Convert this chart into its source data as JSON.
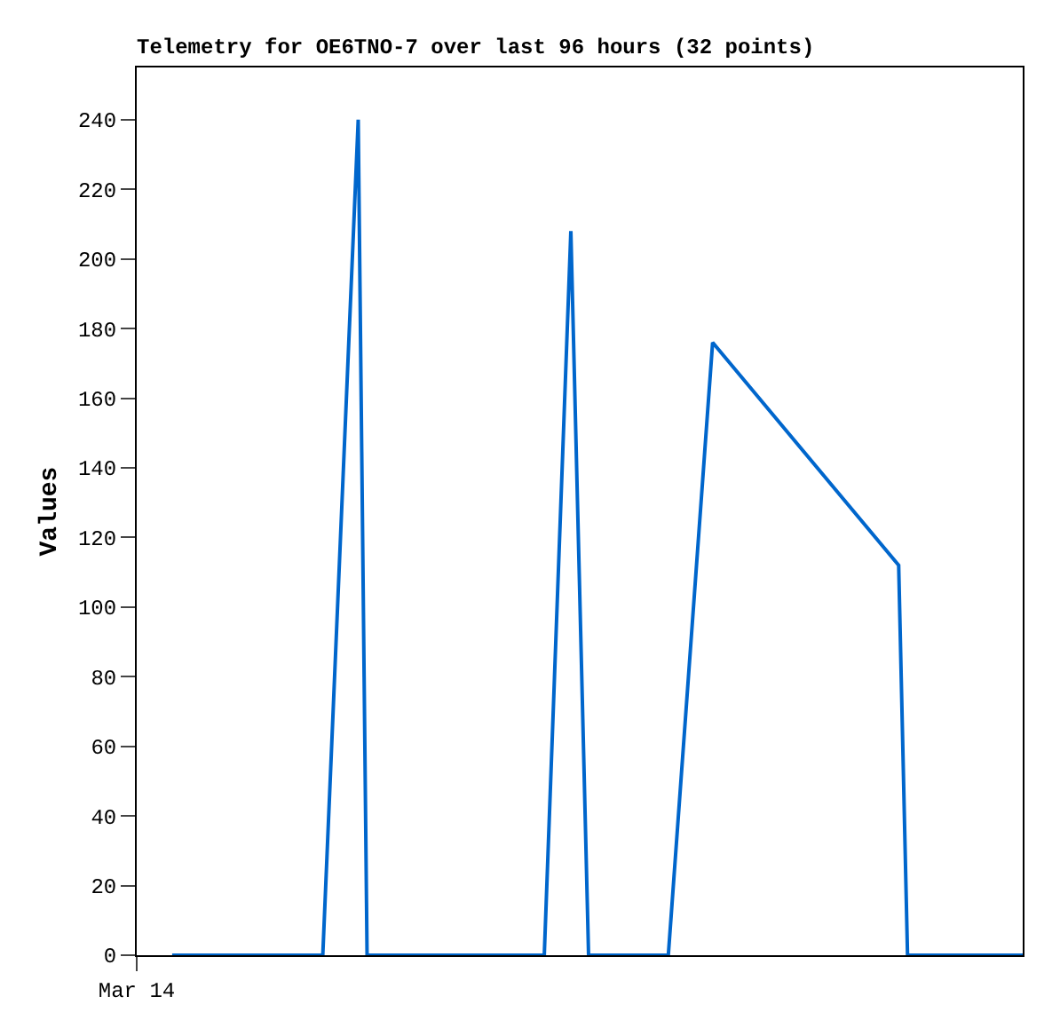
{
  "chart_data": {
    "type": "line",
    "title": "Telemetry for OE6TNO-7 over last 96 hours (32 points)",
    "ylabel": "Values",
    "categories": [
      "Mar 14",
      null,
      null,
      null,
      null,
      null,
      null,
      null,
      null,
      null,
      null,
      null,
      null,
      null,
      null,
      null,
      null,
      null,
      null,
      null,
      null,
      null,
      null,
      null,
      null,
      null,
      null,
      null,
      null,
      null,
      null,
      null,
      null,
      null,
      null,
      null,
      null,
      null,
      null,
      null,
      null,
      null,
      null,
      null,
      null,
      null,
      null,
      null,
      null,
      null,
      null,
      null,
      null,
      null,
      null,
      null,
      null,
      null,
      null,
      null,
      null,
      null,
      null,
      null,
      null,
      null,
      null,
      null,
      null,
      null,
      null,
      null,
      null,
      null,
      null,
      null,
      null,
      null,
      null,
      null,
      null,
      null,
      null,
      null,
      null,
      null,
      null,
      null,
      null,
      null,
      null,
      null,
      null,
      null,
      null,
      null,
      null,
      null,
      null,
      null,
      null
    ],
    "series": [
      {
        "color": "#0066cc",
        "values": [
          null,
          null,
          null,
          null,
          0,
          null,
          null,
          null,
          null,
          null,
          null,
          null,
          null,
          null,
          null,
          null,
          null,
          null,
          null,
          null,
          null,
          0,
          null,
          null,
          null,
          240,
          0,
          null,
          null,
          null,
          null,
          null,
          null,
          null,
          null,
          null,
          null,
          null,
          null,
          null,
          null,
          null,
          null,
          null,
          null,
          null,
          0,
          null,
          null,
          208,
          null,
          0,
          null,
          null,
          null,
          null,
          null,
          null,
          null,
          null,
          0,
          null,
          null,
          null,
          null,
          176,
          null,
          null,
          null,
          null,
          null,
          null,
          null,
          null,
          null,
          null,
          null,
          null,
          null,
          null,
          null,
          null,
          null,
          null,
          null,
          null,
          112,
          0,
          null,
          null,
          null,
          null,
          null,
          null,
          null,
          null,
          null,
          null,
          null,
          null,
          0
        ]
      }
    ],
    "ylim": [
      0,
      255
    ],
    "yticks": [
      0,
      20,
      40,
      60,
      80,
      100,
      120,
      140,
      160,
      180,
      200,
      220,
      240
    ],
    "marker": "none",
    "line_style": "solid"
  }
}
